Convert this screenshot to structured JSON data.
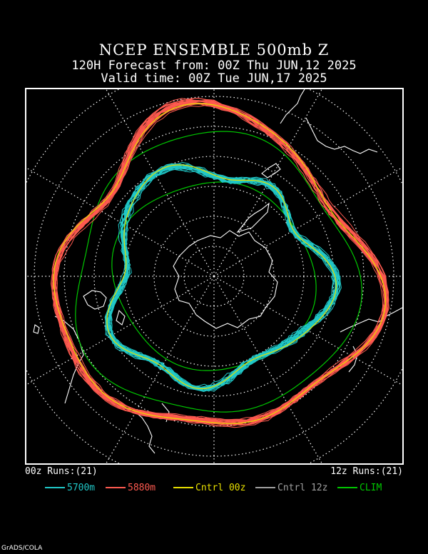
{
  "header": {
    "title": "NCEP ENSEMBLE 500mb Z",
    "forecast_line": "120H Forecast from: 00Z Thu JUN,12 2025",
    "valid_line": "Valid time: 00Z Tue JUN,17 2025"
  },
  "runs": {
    "left": "00z Runs:(21)",
    "right": "12z Runs:(21)"
  },
  "legend": [
    {
      "label": "5700m",
      "color": "#20c8c8"
    },
    {
      "label": "5880m",
      "color": "#ff5a50"
    },
    {
      "label": "Cntrl 00z",
      "color": "#e8e000"
    },
    {
      "label": "Cntrl 12z",
      "color": "#a0a0a0"
    },
    {
      "label": "CLIM",
      "color": "#00c800"
    }
  ],
  "credit": "GrADS/COLA",
  "colors": {
    "background": "#000000",
    "grid": "#ffffff",
    "coast": "#ffffff",
    "c5700": "#20c8c8",
    "c5880": "#ff5a50",
    "cntrl00": "#e8e000",
    "clim": "#00c800"
  }
}
